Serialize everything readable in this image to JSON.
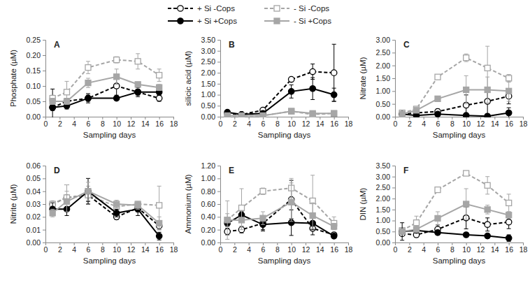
{
  "chart_data": [
    {
      "type": "line",
      "title": "A",
      "x_label": "Sampling days",
      "y_label": "Phosphate (µM)",
      "legend": "top",
      "x": [
        1,
        3,
        6,
        10,
        13,
        16
      ],
      "xlim": [
        0,
        18
      ],
      "xticks": [
        0,
        2,
        4,
        6,
        8,
        10,
        12,
        14,
        16,
        18
      ],
      "ylim": [
        0,
        0.25
      ],
      "yticks": [
        {
          "value": 0,
          "label": "0.00"
        },
        {
          "value": 0.05,
          "label": "0.05"
        },
        {
          "value": 0.1,
          "label": "0.10"
        },
        {
          "value": 0.15,
          "label": "0.15"
        },
        {
          "value": 0.2,
          "label": "0.20"
        },
        {
          "value": 0.25,
          "label": "0.25"
        }
      ],
      "series": [
        {
          "name": "+ Si -Cops",
          "color": "#000000",
          "line_style": "dashed",
          "marker": "open-circle",
          "values": [
            0.03,
            0.05,
            0.06,
            0.1,
            0.08,
            0.06
          ],
          "errors": [
            0.06,
            0.01,
            0.01,
            0.03,
            0.01,
            0.01
          ]
        },
        {
          "name": "- Si -Cops",
          "color": "#a6a6a6",
          "line_style": "dashed",
          "marker": "open-square",
          "values": [
            0.06,
            0.08,
            0.16,
            0.185,
            0.18,
            0.135
          ],
          "errors": [
            0.01,
            0.035,
            0.02,
            0.01,
            0.025,
            0.02
          ]
        },
        {
          "name": "+ Si +Cops",
          "color": "#000000",
          "line_style": "solid",
          "marker": "circle",
          "values": [
            0.03,
            0.035,
            0.06,
            0.06,
            0.08,
            0.08
          ],
          "errors": [
            0.01,
            0.01,
            0.015,
            0.005,
            0.015,
            0.01
          ]
        },
        {
          "name": "- Si +Cops",
          "color": "#a6a6a6",
          "line_style": "solid",
          "marker": "square",
          "values": [
            0.05,
            0.05,
            0.11,
            0.13,
            0.105,
            0.095
          ],
          "errors": [
            0.01,
            0.01,
            0.015,
            0.025,
            0.005,
            0.01
          ]
        }
      ]
    },
    {
      "type": "line",
      "title": "B",
      "x_label": "Sampling days",
      "y_label": "silicic acid (µM)",
      "x": [
        1,
        3,
        6,
        10,
        13,
        16
      ],
      "xlim": [
        0,
        18
      ],
      "xticks": [
        0,
        2,
        4,
        6,
        8,
        10,
        12,
        14,
        16,
        18
      ],
      "ylim": [
        0,
        3.5
      ],
      "yticks": [
        {
          "value": 0,
          "label": "0.00"
        },
        {
          "value": 0.5,
          "label": "0.50"
        },
        {
          "value": 1,
          "label": "1.00"
        },
        {
          "value": 1.5,
          "label": "1.50"
        },
        {
          "value": 2,
          "label": "2.00"
        },
        {
          "value": 2.5,
          "label": "2.50"
        },
        {
          "value": 3,
          "label": "3.00"
        },
        {
          "value": 3.5,
          "label": "3.50"
        }
      ],
      "series": [
        {
          "name": "+ Si -Cops",
          "color": "#000000",
          "line_style": "dashed",
          "marker": "open-circle",
          "values": [
            0.15,
            0.1,
            0.3,
            1.7,
            2.05,
            2.0
          ],
          "errors": [
            0.05,
            0.05,
            0.05,
            0.1,
            0.35,
            1.3
          ]
        },
        {
          "name": "- Si -Cops",
          "color": "#a6a6a6",
          "line_style": "dashed",
          "marker": "open-square",
          "values": [
            0.05,
            0.05,
            0.05,
            0.25,
            0.1,
            0.15
          ],
          "errors": [
            0.02,
            0.02,
            0.02,
            0.1,
            0.05,
            0.05
          ]
        },
        {
          "name": "+ Si +Cops",
          "color": "#000000",
          "line_style": "solid",
          "marker": "circle",
          "values": [
            0.2,
            0.1,
            0.15,
            1.15,
            1.28,
            1.0
          ],
          "errors": [
            0.05,
            0.05,
            0.05,
            0.3,
            0.5,
            0.3
          ]
        },
        {
          "name": "- Si +Cops",
          "color": "#a6a6a6",
          "line_style": "solid",
          "marker": "square",
          "values": [
            0.05,
            0.05,
            0.05,
            0.25,
            0.15,
            0.15
          ],
          "errors": [
            0.02,
            0.02,
            0.02,
            0.1,
            0.05,
            0.05
          ]
        }
      ]
    },
    {
      "type": "line",
      "title": "C",
      "x_label": "Sampling days",
      "y_label": "Nitrate (µM)",
      "x": [
        1,
        3,
        6,
        10,
        13,
        16
      ],
      "xlim": [
        0,
        18
      ],
      "xticks": [
        0,
        2,
        4,
        6,
        8,
        10,
        12,
        14,
        16,
        18
      ],
      "ylim": [
        0,
        3
      ],
      "yticks": [
        {
          "value": 0,
          "label": "0.00"
        },
        {
          "value": 0.5,
          "label": "0.50"
        },
        {
          "value": 1,
          "label": "1.00"
        },
        {
          "value": 1.5,
          "label": "1.50"
        },
        {
          "value": 2,
          "label": "2.00"
        },
        {
          "value": 2.5,
          "label": "2.50"
        },
        {
          "value": 3,
          "label": "3.00"
        }
      ],
      "series": [
        {
          "name": "+ Si -Cops",
          "color": "#000000",
          "line_style": "dashed",
          "marker": "open-circle",
          "values": [
            0.1,
            0.15,
            0.2,
            0.45,
            0.6,
            0.8
          ],
          "errors": [
            0.05,
            0.05,
            0.1,
            0.4,
            0.5,
            0.3
          ]
        },
        {
          "name": "- Si -Cops",
          "color": "#a6a6a6",
          "line_style": "dashed",
          "marker": "open-square",
          "values": [
            0.15,
            0.3,
            1.55,
            2.3,
            1.9,
            1.5
          ],
          "errors": [
            0.05,
            0.1,
            0.05,
            0.15,
            0.85,
            0.15
          ]
        },
        {
          "name": "+ Si +Cops",
          "color": "#000000",
          "line_style": "solid",
          "marker": "circle",
          "values": [
            0.1,
            0.05,
            0.1,
            0.05,
            0.02,
            0.15
          ],
          "errors": [
            0.02,
            0.05,
            0.05,
            0.05,
            0.02,
            0.2
          ]
        },
        {
          "name": "- Si +Cops",
          "color": "#a6a6a6",
          "line_style": "solid",
          "marker": "square",
          "values": [
            0.1,
            0.25,
            0.7,
            1.05,
            1.05,
            1.0
          ],
          "errors": [
            0.05,
            0.1,
            0.05,
            0.55,
            0.5,
            0.4
          ]
        }
      ]
    },
    {
      "type": "line",
      "title": "D",
      "x_label": "Sampling days",
      "y_label": "Nitrite (µM)",
      "x": [
        1,
        3,
        6,
        10,
        13,
        16
      ],
      "xlim": [
        0,
        18
      ],
      "xticks": [
        0,
        2,
        4,
        6,
        8,
        10,
        12,
        14,
        16,
        18
      ],
      "ylim": [
        0,
        0.06
      ],
      "yticks": [
        {
          "value": 0,
          "label": "0.00"
        },
        {
          "value": 0.01,
          "label": "0.01"
        },
        {
          "value": 0.02,
          "label": "0.02"
        },
        {
          "value": 0.03,
          "label": "0.03"
        },
        {
          "value": 0.04,
          "label": "0.04"
        },
        {
          "value": 0.05,
          "label": "0.05"
        },
        {
          "value": 0.06,
          "label": "0.06"
        }
      ],
      "series": [
        {
          "name": "+ Si -Cops",
          "color": "#000000",
          "line_style": "dashed",
          "marker": "open-circle",
          "values": [
            0.03,
            0.035,
            0.037,
            0.02,
            0.027,
            0.013
          ],
          "errors": [
            0.002,
            0.01,
            0.005,
            0.002,
            0.003,
            0.003
          ]
        },
        {
          "name": "- Si -Cops",
          "color": "#a6a6a6",
          "line_style": "dashed",
          "marker": "open-square",
          "values": [
            0.03,
            0.035,
            0.037,
            0.028,
            0.03,
            0.029
          ],
          "errors": [
            0.002,
            0.01,
            0.007,
            0.003,
            0.002,
            0.015
          ]
        },
        {
          "name": "+ Si +Cops",
          "color": "#000000",
          "line_style": "solid",
          "marker": "circle",
          "values": [
            0.026,
            0.026,
            0.04,
            0.023,
            0.026,
            0.005
          ],
          "errors": [
            0.005,
            0.005,
            0.01,
            0.003,
            0.005,
            0.003
          ]
        },
        {
          "name": "- Si +Cops",
          "color": "#a6a6a6",
          "line_style": "solid",
          "marker": "square",
          "values": [
            0.023,
            0.032,
            0.04,
            0.03,
            0.029,
            0.015
          ],
          "errors": [
            0.003,
            0.008,
            0.007,
            0.003,
            0.003,
            0.005
          ]
        }
      ]
    },
    {
      "type": "line",
      "title": "E",
      "x_label": "Sampling days",
      "y_label": "Ammonium (µM)",
      "x": [
        1,
        3,
        6,
        10,
        13,
        16
      ],
      "xlim": [
        0,
        18
      ],
      "xticks": [
        0,
        2,
        4,
        6,
        8,
        10,
        12,
        14,
        16,
        18
      ],
      "ylim": [
        0,
        1.2
      ],
      "yticks": [
        {
          "value": 0,
          "label": "0.00"
        },
        {
          "value": 0.2,
          "label": "0.20"
        },
        {
          "value": 0.4,
          "label": "0.40"
        },
        {
          "value": 0.6,
          "label": "0.60"
        },
        {
          "value": 0.8,
          "label": "0.80"
        },
        {
          "value": 1,
          "label": "1.00"
        },
        {
          "value": 1.2,
          "label": "1.20"
        }
      ],
      "series": [
        {
          "name": "+ Si -Cops",
          "color": "#000000",
          "line_style": "dashed",
          "marker": "open-circle",
          "values": [
            0.17,
            0.2,
            0.3,
            0.67,
            0.22,
            0.12
          ],
          "errors": [
            0.05,
            0.05,
            0.1,
            0.3,
            0.1,
            0.03
          ]
        },
        {
          "name": "- Si -Cops",
          "color": "#a6a6a6",
          "line_style": "dashed",
          "marker": "open-square",
          "values": [
            0.35,
            0.54,
            0.8,
            0.85,
            0.65,
            0.3
          ],
          "errors": [
            0.3,
            0.3,
            0.05,
            0.15,
            0.4,
            0.1
          ]
        },
        {
          "name": "+ Si +Cops",
          "color": "#000000",
          "line_style": "solid",
          "marker": "circle",
          "values": [
            0.3,
            0.43,
            0.28,
            0.31,
            0.3,
            0.1
          ],
          "errors": [
            0.05,
            0.05,
            0.1,
            0.2,
            0.1,
            0.03
          ]
        },
        {
          "name": "- Si +Cops",
          "color": "#a6a6a6",
          "line_style": "solid",
          "marker": "square",
          "values": [
            0.35,
            0.35,
            0.38,
            0.63,
            0.42,
            0.25
          ],
          "errors": [
            0.1,
            0.15,
            0.1,
            0.3,
            0.2,
            0.05
          ]
        }
      ]
    },
    {
      "type": "line",
      "title": "F",
      "x_label": "Sampling days",
      "y_label": "DIN (µM)",
      "x": [
        1,
        3,
        6,
        10,
        13,
        16
      ],
      "xlim": [
        0,
        18
      ],
      "xticks": [
        0,
        2,
        4,
        6,
        8,
        10,
        12,
        14,
        16,
        18
      ],
      "ylim": [
        0,
        3.5
      ],
      "yticks": [
        {
          "value": 0,
          "label": "0.00"
        },
        {
          "value": 0.5,
          "label": "0.50"
        },
        {
          "value": 1,
          "label": "1.00"
        },
        {
          "value": 1.5,
          "label": "1.50"
        },
        {
          "value": 2,
          "label": "2.00"
        },
        {
          "value": 2.5,
          "label": "2.50"
        },
        {
          "value": 3,
          "label": "3.00"
        },
        {
          "value": 3.5,
          "label": "3.50"
        }
      ],
      "series": [
        {
          "name": "+ Si -Cops",
          "color": "#000000",
          "line_style": "dashed",
          "marker": "open-circle",
          "values": [
            0.4,
            0.35,
            0.6,
            1.12,
            0.82,
            0.93
          ],
          "errors": [
            0.1,
            0.1,
            0.2,
            0.5,
            0.3,
            0.3
          ]
        },
        {
          "name": "- Si -Cops",
          "color": "#a6a6a6",
          "line_style": "dashed",
          "marker": "open-square",
          "values": [
            0.55,
            0.9,
            2.4,
            3.15,
            2.6,
            1.8
          ],
          "errors": [
            0.1,
            0.3,
            0.1,
            0.1,
            0.4,
            0.4
          ]
        },
        {
          "name": "+ Si +Cops",
          "color": "#000000",
          "line_style": "solid",
          "marker": "circle",
          "values": [
            0.5,
            0.55,
            0.45,
            0.35,
            0.3,
            0.2
          ],
          "errors": [
            0.4,
            0.1,
            0.1,
            0.05,
            0.1,
            0.15
          ]
        },
        {
          "name": "- Si +Cops",
          "color": "#a6a6a6",
          "line_style": "solid",
          "marker": "square",
          "values": [
            0.5,
            0.6,
            1.1,
            1.75,
            1.5,
            1.25
          ],
          "errors": [
            0.05,
            0.15,
            0.3,
            0.7,
            0.2,
            0.15
          ]
        }
      ]
    }
  ]
}
